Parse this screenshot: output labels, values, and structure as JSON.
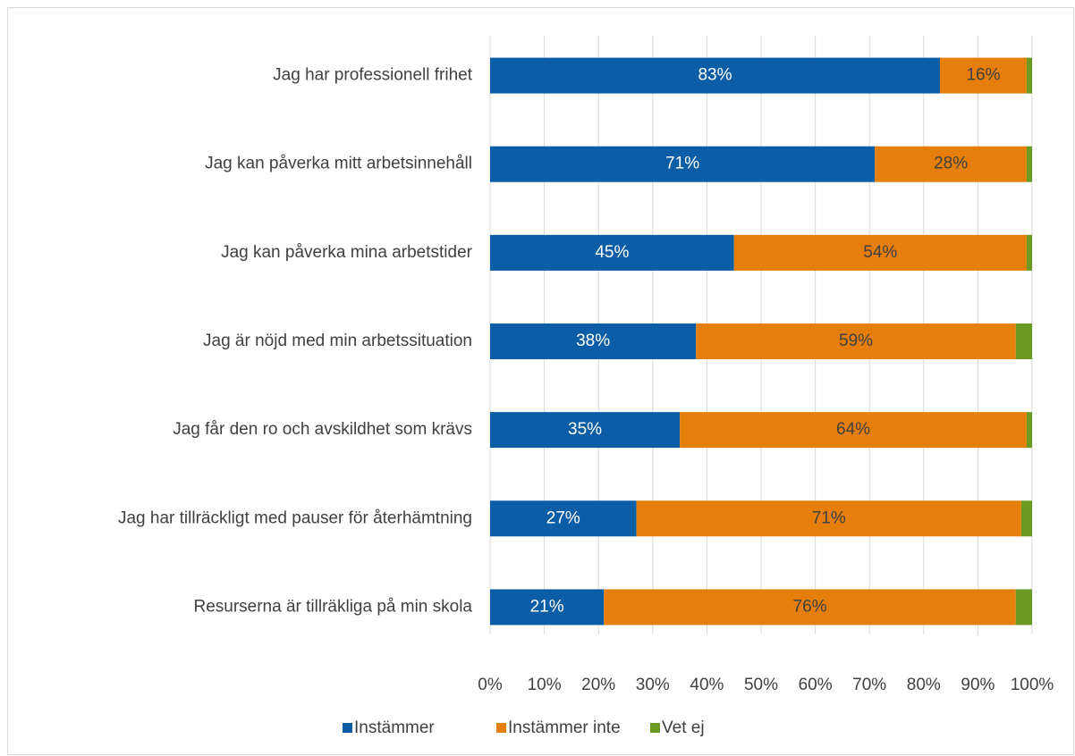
{
  "chart_data": {
    "type": "stacked_barh",
    "categories": [
      "Jag har professionell frihet",
      "Jag kan påverka mitt arbetsinnehåll",
      "Jag kan påverka mina arbetstider",
      "Jag är nöjd med min arbetssituation",
      "Jag får den ro och avskildhet som krävs",
      "Jag har tillräckligt med pauser för återhämtning",
      "Resurserna är tillräkliga på min skola"
    ],
    "series": [
      {
        "name": "Instämmer",
        "color": "#0b5ea6",
        "values": [
          83,
          71,
          45,
          38,
          35,
          27,
          21
        ],
        "value_labels": [
          "83%",
          "71%",
          "45%",
          "38%",
          "35%",
          "27%",
          "21%"
        ]
      },
      {
        "name": "Instämmer inte",
        "color": "#e57e0a",
        "values": [
          16,
          28,
          54,
          59,
          64,
          71,
          76
        ],
        "value_labels": [
          "16%",
          "28%",
          "54%",
          "59%",
          "64%",
          "71%",
          "76%"
        ]
      },
      {
        "name": "Vet ej",
        "color": "#6a9a22",
        "values": [
          1,
          1,
          1,
          3,
          1,
          2,
          3
        ]
      }
    ],
    "xlim": [
      0,
      100
    ],
    "xticks": [
      {
        "value": 0,
        "label": "0%"
      },
      {
        "value": 10,
        "label": "10%"
      },
      {
        "value": 20,
        "label": "20%"
      },
      {
        "value": 30,
        "label": "30%"
      },
      {
        "value": 40,
        "label": "40%"
      },
      {
        "value": 50,
        "label": "50%"
      },
      {
        "value": 60,
        "label": "60%"
      },
      {
        "value": 70,
        "label": "70%"
      },
      {
        "value": 80,
        "label": "80%"
      },
      {
        "value": 90,
        "label": "90%"
      },
      {
        "value": 100,
        "label": "100%"
      }
    ],
    "grid": true,
    "legend": "bottom"
  }
}
